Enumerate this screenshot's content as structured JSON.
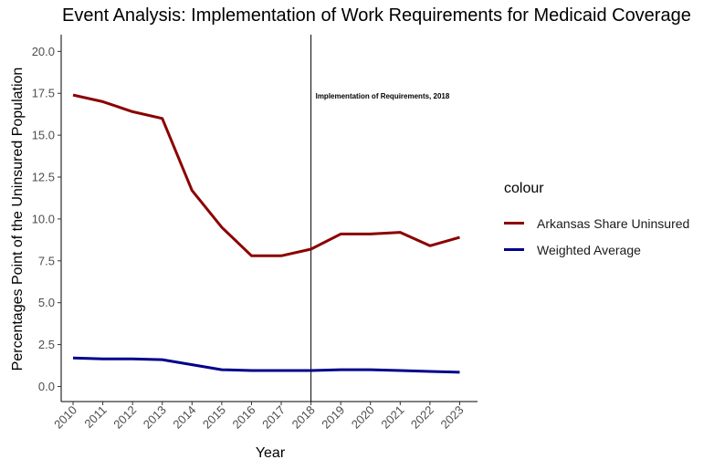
{
  "chart_data": {
    "type": "line",
    "title": "Event Analysis: Implementation of Work Requirements for Medicaid Coverage",
    "xlabel": "Year",
    "ylabel": "Percentages Point of the Uninsured Population",
    "x": [
      2010,
      2011,
      2012,
      2013,
      2014,
      2015,
      2016,
      2017,
      2018,
      2019,
      2020,
      2021,
      2022,
      2023
    ],
    "series": [
      {
        "name": "Arkansas Share Uninsured",
        "color": "#8B0000",
        "values": [
          17.4,
          17.0,
          16.4,
          16.0,
          11.7,
          9.5,
          7.8,
          7.8,
          8.2,
          9.1,
          9.1,
          9.2,
          8.4,
          8.9
        ]
      },
      {
        "name": "Weighted Average",
        "color": "#00008B",
        "values": [
          1.7,
          1.65,
          1.65,
          1.6,
          1.3,
          1.0,
          0.95,
          0.95,
          0.95,
          1.0,
          1.0,
          0.95,
          0.9,
          0.85
        ]
      }
    ],
    "ylim": [
      -0.9,
      21.0
    ],
    "xlim": [
      2009.6,
      2023.6
    ],
    "yticks": [
      "0.0",
      "2.5",
      "5.0",
      "7.5",
      "10.0",
      "12.5",
      "15.0",
      "17.5",
      "20.0"
    ],
    "xticks": [
      "2010",
      "2011",
      "2012",
      "2013",
      "2014",
      "2015",
      "2016",
      "2017",
      "2018",
      "2019",
      "2020",
      "2021",
      "2022",
      "2023"
    ],
    "vline": {
      "x": 2018,
      "label": "Implementation of Requirements, 2018"
    },
    "legend": {
      "title": "colour",
      "position": "right"
    },
    "grid": false
  }
}
